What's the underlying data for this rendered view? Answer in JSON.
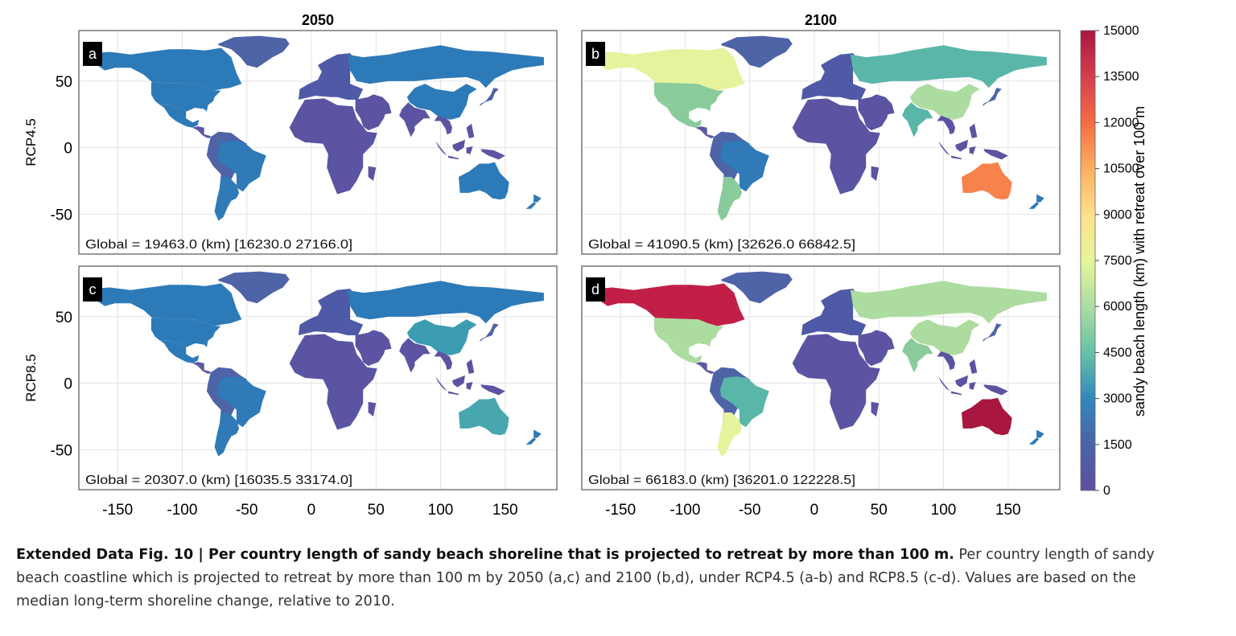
{
  "columns": [
    "2050",
    "2100"
  ],
  "rows": [
    "RCP4.5",
    "RCP8.5"
  ],
  "panels": [
    {
      "letter": "a",
      "global": "Global = 19463.0 (km) [16230.0 27166.0]",
      "fills": {
        "na_can": "#2d7ab8",
        "greenland": "#4f63a7",
        "usa": "#2d7ab8",
        "mexico": "#2d7ab8",
        "central_am": "#5a5aa3",
        "brazil": "#2f7ab7",
        "south_am": "#4f63a7",
        "argentina": "#2f7ab7",
        "europe": "#4f5aa6",
        "africa": "#5a54a2",
        "russia": "#2d7ab8",
        "china": "#2d7ab8",
        "india": "#5a54a2",
        "middle_east": "#5a54a2",
        "se_asia": "#5a54a2",
        "japan": "#4f63a7",
        "australia": "#2d7ab8",
        "nz": "#2f7ab7",
        "madagascar": "#5a54a2"
      }
    },
    {
      "letter": "b",
      "global": "Global = 41090.5 (km) [32626.0 66842.5]",
      "fills": {
        "na_can": "#e6f29c",
        "greenland": "#4f63a7",
        "usa": "#8acb9c",
        "mexico": "#8acb9c",
        "central_am": "#5a5aa3",
        "brazil": "#2f7ab7",
        "south_am": "#4f63a7",
        "argentina": "#8acb9c",
        "europe": "#4f5aa6",
        "africa": "#5a54a2",
        "russia": "#5ab6a8",
        "china": "#acdc9f",
        "india": "#5ab6a8",
        "middle_east": "#5a54a2",
        "se_asia": "#5a54a2",
        "japan": "#4f63a7",
        "australia": "#f7824c",
        "nz": "#2f7ab7",
        "madagascar": "#5a54a2"
      }
    },
    {
      "letter": "c",
      "global": "Global = 20307.0 (km) [16035.5 33174.0]",
      "fills": {
        "na_can": "#2d7ab8",
        "greenland": "#4f63a7",
        "usa": "#2d7ab8",
        "mexico": "#2d7ab8",
        "central_am": "#5a5aa3",
        "brazil": "#2f7ab7",
        "south_am": "#4f63a7",
        "argentina": "#2f7ab7",
        "europe": "#4f5aa6",
        "africa": "#5a54a2",
        "russia": "#2d7ab8",
        "china": "#3b9cb2",
        "india": "#5a54a2",
        "middle_east": "#5a54a2",
        "se_asia": "#5a54a2",
        "japan": "#4f63a7",
        "australia": "#48a6ae",
        "nz": "#2f7ab7",
        "madagascar": "#5a54a2"
      }
    },
    {
      "letter": "d",
      "global": "Global = 66183.0 (km) [36201.0 122228.5]",
      "fills": {
        "na_can": "#c11f48",
        "greenland": "#4f63a7",
        "usa": "#acdc9f",
        "mexico": "#acdc9f",
        "central_am": "#5a5aa3",
        "brazil": "#5ab6a8",
        "south_am": "#4f63a7",
        "argentina": "#e6f29c",
        "europe": "#4f5aa6",
        "africa": "#5a54a2",
        "russia": "#acdc9f",
        "china": "#acdc9f",
        "india": "#8acb9c",
        "middle_east": "#5a54a2",
        "se_asia": "#5a54a2",
        "japan": "#4f63a7",
        "australia": "#a8173f",
        "nz": "#2f7ab7",
        "madagascar": "#5a54a2"
      }
    }
  ],
  "x_ticks": [
    "-150",
    "-100",
    "-50",
    "0",
    "50",
    "100",
    "150"
  ],
  "y_ticks": [
    "50",
    "0",
    "-50"
  ],
  "colorbar": {
    "label": "sandy beach length (km) with retreat over 100 m",
    "ticks": [
      "15000",
      "13500",
      "12000",
      "10500",
      "9000",
      "7500",
      "6000",
      "4500",
      "3000",
      "1500",
      "0"
    ],
    "colors": [
      "#a8173f",
      "#d53e4f",
      "#f46d43",
      "#fdae61",
      "#fee08b",
      "#e6f598",
      "#abdda4",
      "#66c2a5",
      "#3288bd",
      "#5e4fa2"
    ]
  },
  "caption": {
    "bold": "Extended Data Fig. 10 | Per country length of sandy beach shoreline that is projected to retreat by more than 100 m.",
    "text": " Per country length of sandy beach coastline which is projected to retreat by more than 100 m by 2050 (a,c) and 2100 (b,d), under RCP4.5 (a-b) and RCP8.5 (c-d). Values are based on the median long-term shoreline change, relative to 2010."
  }
}
